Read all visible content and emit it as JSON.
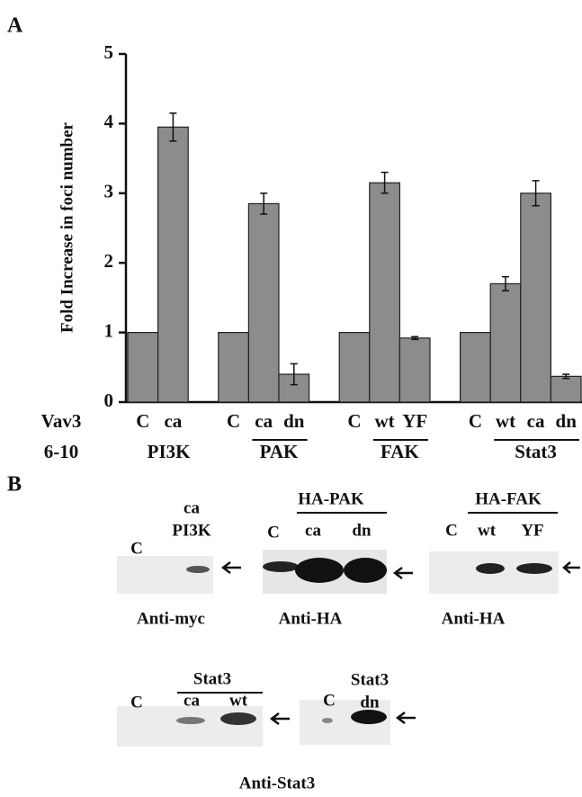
{
  "chart_data": {
    "type": "bar",
    "panel_label": "A",
    "y_label": "Fold Increase in foci number",
    "row_labels": [
      "Vav3",
      "6-10"
    ],
    "groups": [
      {
        "label": "PI3K",
        "categories": [
          "C",
          "ca"
        ],
        "values": [
          1,
          3.95
        ],
        "errors": [
          null,
          0.2
        ]
      },
      {
        "label": "PAK",
        "categories": [
          "C",
          "ca",
          "dn"
        ],
        "values": [
          1,
          2.85,
          0.4
        ],
        "errors": [
          null,
          0.15,
          0.15
        ]
      },
      {
        "label": "FAK",
        "categories": [
          "C",
          "wt",
          "YF"
        ],
        "values": [
          1,
          3.15,
          0.92
        ],
        "errors": [
          null,
          0.15,
          0.02
        ]
      },
      {
        "label": "Stat3",
        "categories": [
          "C",
          "wt",
          "ca",
          "dn"
        ],
        "values": [
          1,
          1.7,
          3,
          0.37
        ],
        "errors": [
          null,
          0.1,
          0.18,
          0.03
        ]
      }
    ],
    "color": "#8c8c8c",
    "ylim": [
      0,
      5
    ],
    "yticks": [
      0,
      1,
      2,
      3,
      4,
      5
    ]
  },
  "panel_b": {
    "label": "B",
    "blots": [
      {
        "headers": [
          "ca",
          "PI3K"
        ],
        "lanes": [
          "C"
        ],
        "antibody": "Anti-myc"
      },
      {
        "headers": [
          "HA-PAK"
        ],
        "lanes": [
          "C",
          "ca",
          "dn"
        ],
        "antibody": "Anti-HA"
      },
      {
        "headers": [
          "HA-FAK"
        ],
        "lanes": [
          "C",
          "wt",
          "YF"
        ],
        "antibody": "Anti-HA"
      },
      {
        "headers": [
          "Stat3"
        ],
        "lanes": [
          "C",
          "ca",
          "wt"
        ],
        "antibody": "Anti-Stat3"
      },
      {
        "headers": [
          "Stat3",
          "dn"
        ],
        "lanes": [
          "C"
        ]
      }
    ]
  }
}
